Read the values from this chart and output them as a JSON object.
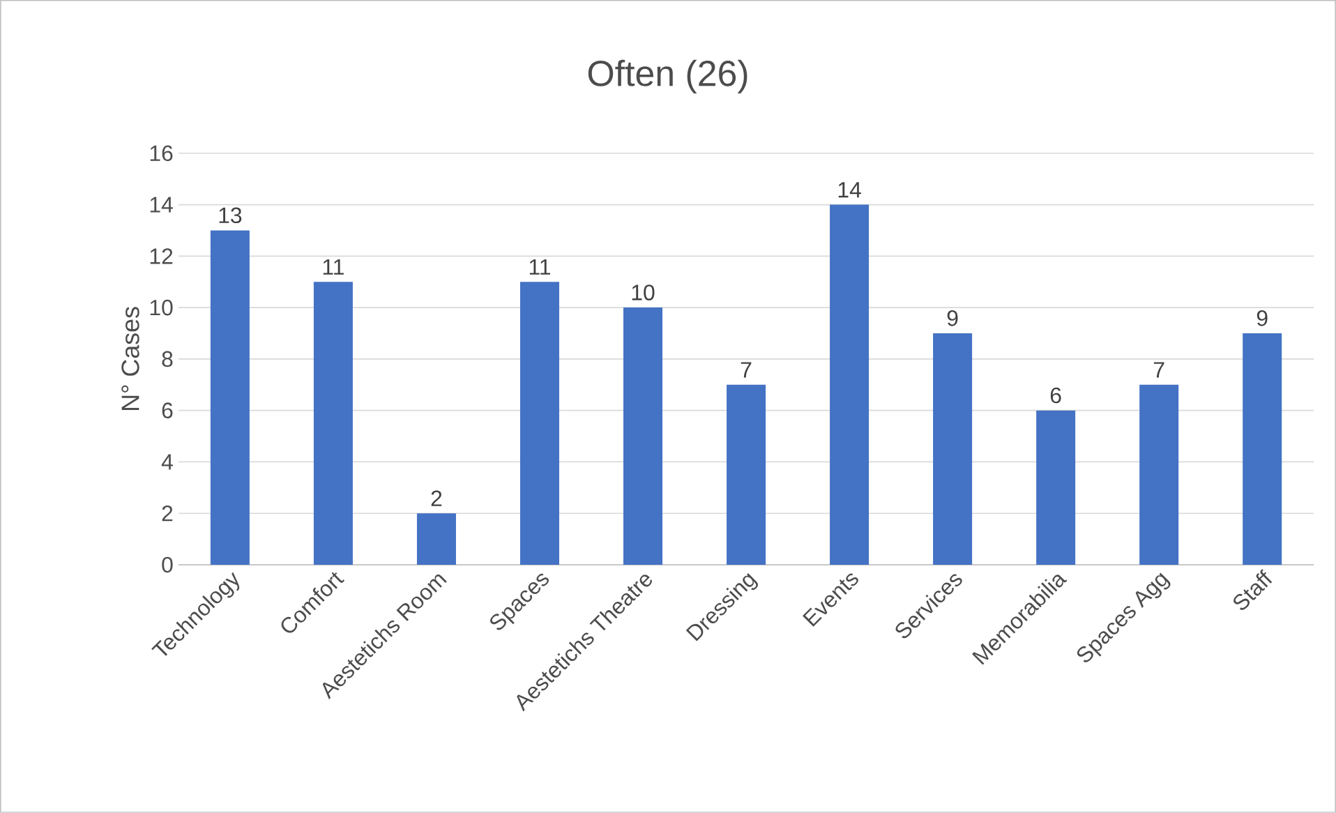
{
  "chart_data": {
    "type": "bar",
    "title": "Often (26)",
    "ylabel": "N° Cases",
    "categories": [
      "Technology",
      "Comfort",
      "Aestetichs Room",
      "Spaces",
      "Aestetichs Theatre",
      "Dressing",
      "Events",
      "Services",
      "Memorabilia",
      "Spaces Agg",
      "Staff"
    ],
    "values": [
      13,
      11,
      2,
      11,
      10,
      7,
      14,
      9,
      6,
      7,
      9
    ],
    "color": "#4472c4",
    "ylim": [
      0,
      16
    ],
    "yticks": [
      0,
      2,
      4,
      6,
      8,
      10,
      12,
      14,
      16
    ],
    "grid": "y",
    "data_labels": true
  }
}
